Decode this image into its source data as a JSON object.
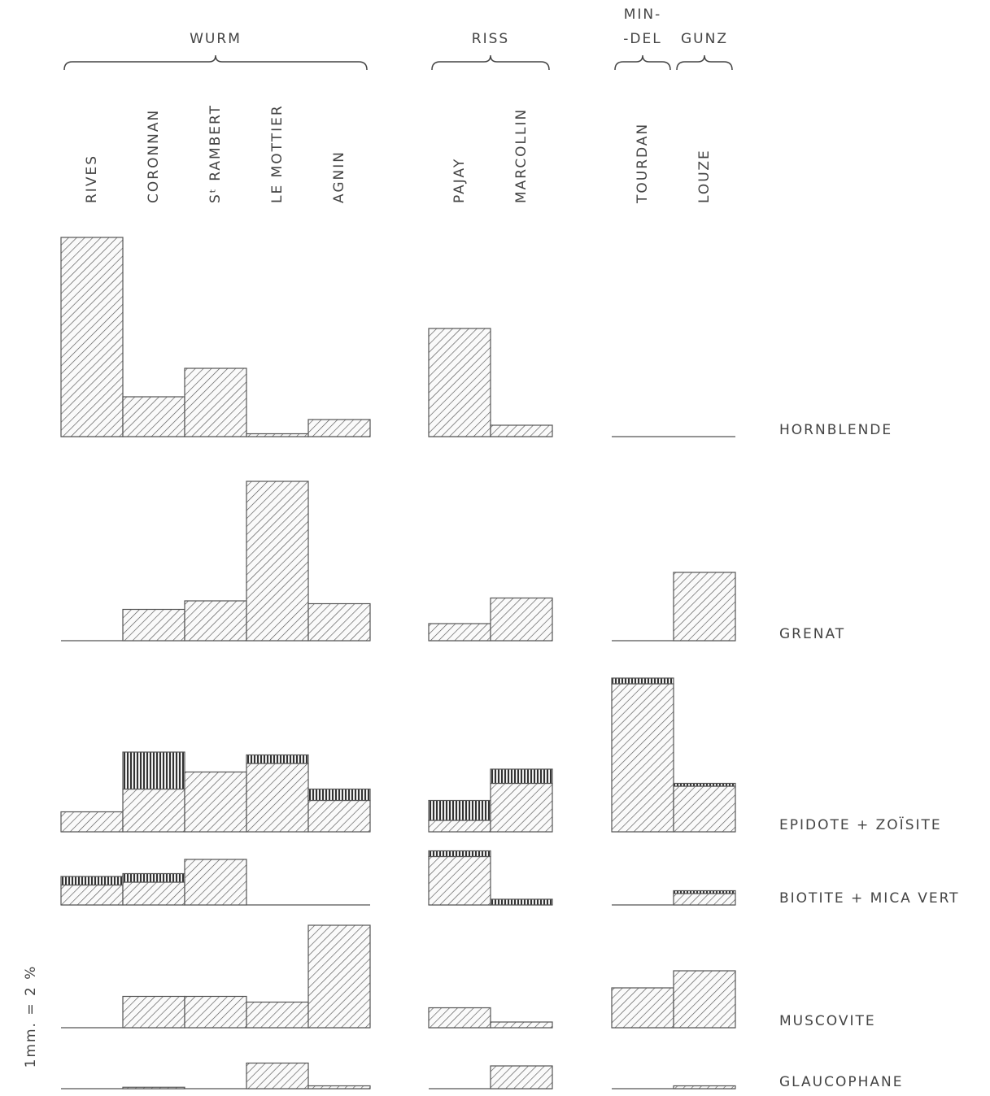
{
  "chart_data": {
    "type": "bar",
    "scale_label": "1mm. = 2 %",
    "groups": [
      {
        "label": "WURM",
        "sites": [
          "RIVES",
          "CORONNAN",
          "Sᵗ RAMBERT",
          "LE MOTTIER",
          "AGNIN"
        ]
      },
      {
        "label": "RISS",
        "sites": [
          "PAJAY",
          "MARCOLLIN"
        ]
      },
      {
        "label": [
          "MIN-",
          "-DEL"
        ],
        "sites": [
          "TOURDAN"
        ]
      },
      {
        "label": "GUNZ",
        "sites": [
          "LOUZE"
        ]
      }
    ],
    "rows": [
      {
        "label": "HORNBLENDE",
        "values": [
          70,
          14,
          24,
          1,
          6,
          38,
          4,
          0,
          0
        ]
      },
      {
        "label": "GRENAT",
        "values": [
          0,
          11,
          14,
          56,
          13,
          6,
          15,
          0,
          24
        ]
      },
      {
        "label": "EPIDOTE + ZOÏSITE",
        "values": [
          7,
          15,
          21,
          24,
          11,
          4,
          17,
          52,
          16
        ],
        "stripes": [
          0,
          13,
          0,
          3,
          4,
          7,
          5,
          2,
          1
        ]
      },
      {
        "label": "BIOTITE + MICA VERT",
        "values": [
          7,
          8,
          16,
          0,
          0,
          17,
          0,
          0,
          4
        ],
        "stripes": [
          3,
          3,
          0,
          0,
          0,
          2,
          2,
          0,
          1
        ]
      },
      {
        "label": "MUSCOVITE",
        "values": [
          0,
          11,
          11,
          9,
          36,
          7,
          2,
          14,
          20
        ]
      },
      {
        "label": "GLAUCOPHANE",
        "values": [
          0,
          0.5,
          0,
          9,
          1,
          0,
          8,
          0,
          1
        ]
      }
    ]
  }
}
